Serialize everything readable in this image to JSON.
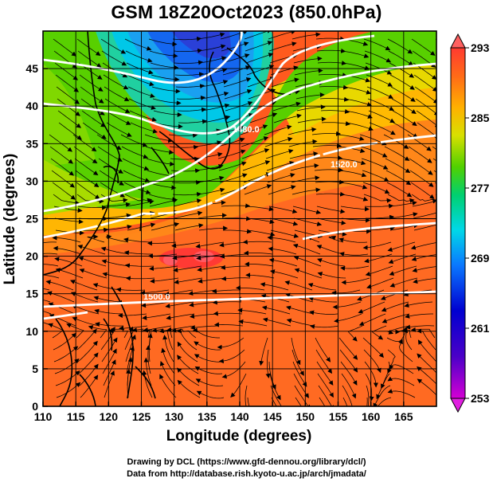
{
  "title": "GSM 18Z20Oct2023 (850.0hPa)",
  "xlabel": "Longitude (degrees)",
  "ylabel": "Latitude  (degrees)",
  "credits": {
    "line1": "Drawing by DCL (https://www.gfd-dennou.org/library/dcl/)",
    "line2": "Data from http://database.rish.kyoto-u.ac.jp/arch/jmadata/"
  },
  "chart_data": {
    "type": "heatmap",
    "x_range": [
      110,
      170
    ],
    "y_range": [
      0,
      50
    ],
    "x_ticks": [
      110,
      115,
      120,
      125,
      130,
      135,
      140,
      145,
      150,
      155,
      160,
      165
    ],
    "y_ticks": [
      0,
      5,
      10,
      15,
      20,
      25,
      30,
      35,
      40,
      45
    ],
    "grid": true,
    "colorbar": {
      "labels": [
        293,
        285,
        277,
        269,
        261,
        253
      ],
      "min": 253,
      "max": 293,
      "placement": "right"
    },
    "contours": [
      {
        "label": "1500.0",
        "lon": 128,
        "lat": 15.5
      },
      {
        "label": "1520.0",
        "lon": 156,
        "lat": 34.5
      },
      {
        "label": "1480.0",
        "lon": 140,
        "lat": 37.5
      }
    ]
  }
}
